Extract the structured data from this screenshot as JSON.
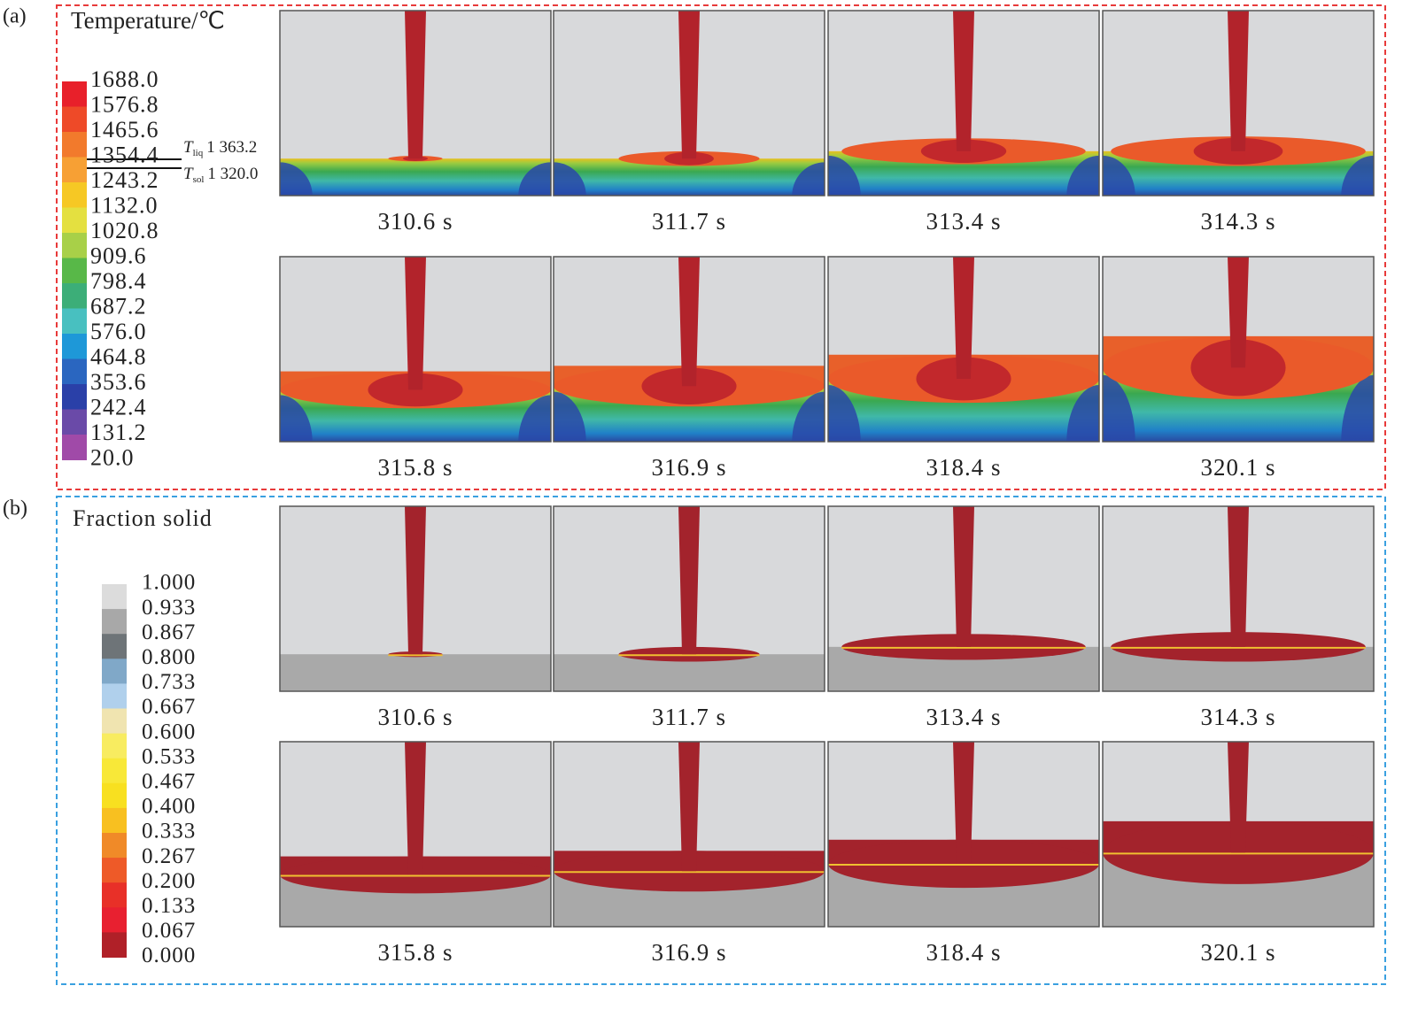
{
  "panels": [
    {
      "label": "(a)",
      "legend": {
        "title": "Temperature/℃",
        "levels": [
          "1688.0",
          "1576.8",
          "1465.6",
          "1354.4",
          "1243.2",
          "1132.0",
          "1020.8",
          "909.6",
          "798.4",
          "687.2",
          "576.0",
          "464.8",
          "353.6",
          "242.4",
          "131.2",
          "20.0"
        ],
        "colors": [
          "#e8202a",
          "#ee4a28",
          "#f27a2c",
          "#f7a034",
          "#f6c824",
          "#e4e040",
          "#a8d048",
          "#58b848",
          "#3cae78",
          "#48c0c0",
          "#1e98d8",
          "#2a66c0",
          "#2a40a8",
          "#6a4aa8",
          "#a04aa8"
        ]
      },
      "markers": [
        {
          "symbol": "T",
          "subscript": "liq",
          "value": "1 363.2"
        },
        {
          "symbol": "T",
          "subscript": "sol",
          "value": "1 320.0"
        }
      ],
      "frames": [
        "310.6 s",
        "311.7 s",
        "313.4 s",
        "314.3 s",
        "315.8 s",
        "316.9 s",
        "318.4 s",
        "320.1 s"
      ]
    },
    {
      "label": "(b)",
      "legend": {
        "title": "Fraction solid",
        "levels": [
          "1.000",
          "0.933",
          "0.867",
          "0.800",
          "0.733",
          "0.667",
          "0.600",
          "0.533",
          "0.467",
          "0.400",
          "0.333",
          "0.267",
          "0.200",
          "0.133",
          "0.067",
          "0.000"
        ],
        "colors": [
          "#dcdcdc",
          "#a8a8a8",
          "#6e7478",
          "#80a8c8",
          "#b0d0ec",
          "#f0e4b0",
          "#f8ec60",
          "#f8e838",
          "#f8e020",
          "#f8c020",
          "#f08a28",
          "#ee5a28",
          "#e83028",
          "#e82030",
          "#b02028"
        ]
      },
      "frames": [
        "310.6 s",
        "311.7 s",
        "313.4 s",
        "314.3 s",
        "315.8 s",
        "316.9 s",
        "318.4 s",
        "320.1 s"
      ]
    }
  ]
}
